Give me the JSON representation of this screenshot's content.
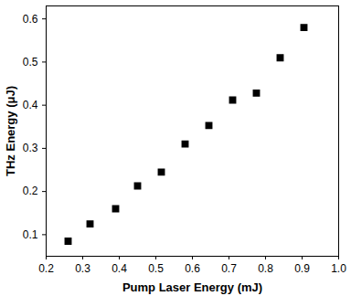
{
  "chart_data": {
    "type": "scatter",
    "x_label": "Pump Laser Energy (mJ)",
    "y_label": "THz Energy (μJ)",
    "x": [
      0.26,
      0.32,
      0.39,
      0.45,
      0.515,
      0.58,
      0.645,
      0.71,
      0.775,
      0.84,
      0.905
    ],
    "values": [
      0.085,
      0.125,
      0.16,
      0.213,
      0.245,
      0.31,
      0.353,
      0.412,
      0.428,
      0.51,
      0.58
    ],
    "color": "#000000",
    "marker": "square",
    "xlim": [
      0.2,
      1.0
    ],
    "xticks": [
      0.2,
      0.3,
      0.4,
      0.5,
      0.6,
      0.7,
      0.8,
      0.9,
      {
        "value": 1.0,
        "label": "1.0"
      }
    ],
    "ylim": [
      0.05,
      0.63
    ],
    "yticks": [
      0.1,
      0.2,
      0.3,
      0.4,
      0.5,
      0.6
    ],
    "grid": false
  }
}
